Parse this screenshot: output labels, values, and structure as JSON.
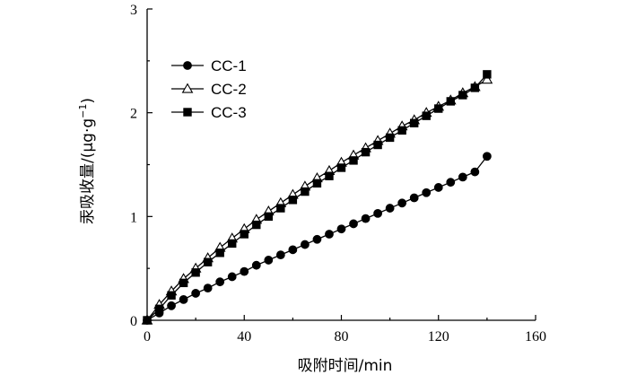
{
  "chart_data": {
    "type": "line",
    "title": "",
    "xlabel": "吸附时间/min",
    "ylabel_main": "汞吸收量/(µg·g",
    "ylabel_sup": "−1",
    "ylabel_close": ")",
    "xlim": [
      0,
      160
    ],
    "ylim": [
      0,
      3
    ],
    "xticks": [
      0,
      40,
      80,
      120,
      160
    ],
    "yticks": [
      0,
      1,
      2,
      3
    ],
    "grid": false,
    "legend": "top-left",
    "series": [
      {
        "name": "CC-1",
        "marker": "filled-circle",
        "x": [
          0,
          5,
          10,
          15,
          20,
          25,
          30,
          35,
          40,
          45,
          50,
          55,
          60,
          65,
          70,
          75,
          80,
          85,
          90,
          95,
          100,
          105,
          110,
          115,
          120,
          125,
          130,
          135,
          140
        ],
        "y": [
          0.0,
          0.07,
          0.14,
          0.2,
          0.26,
          0.31,
          0.37,
          0.42,
          0.47,
          0.53,
          0.58,
          0.63,
          0.68,
          0.73,
          0.78,
          0.83,
          0.88,
          0.93,
          0.98,
          1.03,
          1.08,
          1.13,
          1.18,
          1.23,
          1.28,
          1.33,
          1.38,
          1.43,
          1.58
        ]
      },
      {
        "name": "CC-2",
        "marker": "open-triangle",
        "x": [
          0,
          5,
          10,
          15,
          20,
          25,
          30,
          35,
          40,
          45,
          50,
          55,
          60,
          65,
          70,
          75,
          80,
          85,
          90,
          95,
          100,
          105,
          110,
          115,
          120,
          125,
          130,
          135,
          140
        ],
        "y": [
          0.0,
          0.15,
          0.28,
          0.4,
          0.5,
          0.6,
          0.7,
          0.79,
          0.88,
          0.97,
          1.05,
          1.13,
          1.21,
          1.29,
          1.37,
          1.44,
          1.52,
          1.59,
          1.66,
          1.73,
          1.8,
          1.87,
          1.93,
          2.0,
          2.06,
          2.12,
          2.19,
          2.25,
          2.32
        ]
      },
      {
        "name": "CC-3",
        "marker": "filled-square",
        "x": [
          0,
          5,
          10,
          15,
          20,
          25,
          30,
          35,
          40,
          45,
          50,
          55,
          60,
          65,
          70,
          75,
          80,
          85,
          90,
          95,
          100,
          105,
          110,
          115,
          120,
          125,
          130,
          135,
          140
        ],
        "y": [
          0.0,
          0.11,
          0.24,
          0.36,
          0.46,
          0.56,
          0.65,
          0.74,
          0.83,
          0.92,
          1.0,
          1.08,
          1.16,
          1.24,
          1.32,
          1.39,
          1.47,
          1.54,
          1.62,
          1.69,
          1.76,
          1.83,
          1.9,
          1.97,
          2.04,
          2.11,
          2.17,
          2.24,
          2.37
        ]
      }
    ]
  }
}
